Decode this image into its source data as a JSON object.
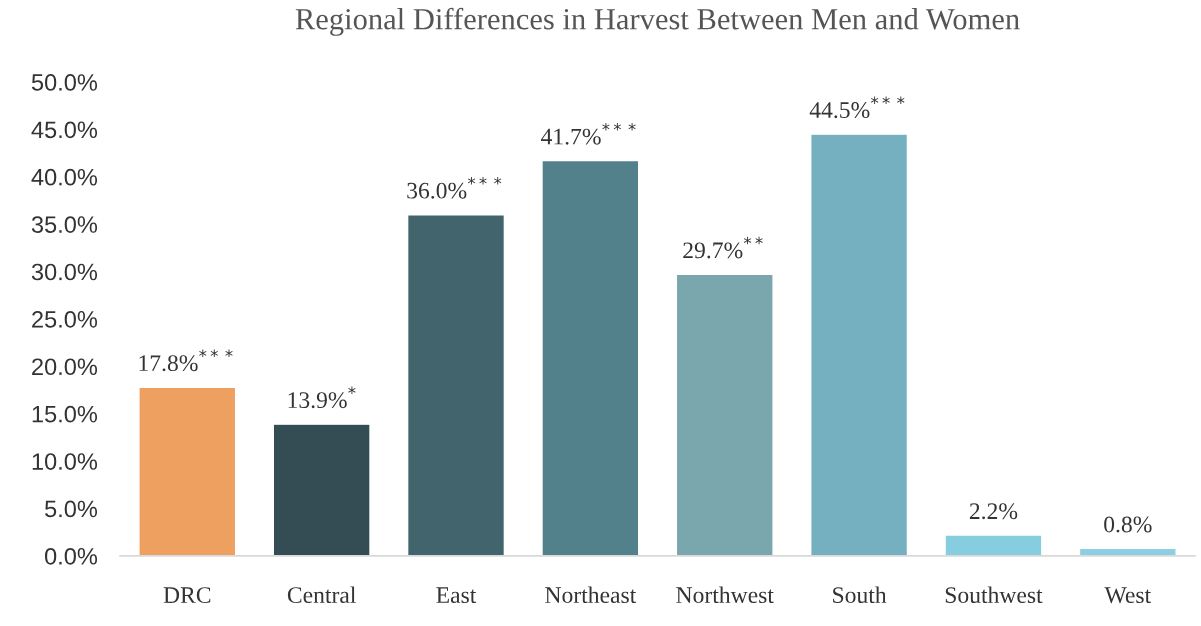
{
  "chart_data": {
    "type": "bar",
    "title": "Regional Differences in Harvest Between Men and Women",
    "categories": [
      "DRC",
      "Central",
      "East",
      "Northeast",
      "Northwest",
      "South",
      "Southwest",
      "West"
    ],
    "values": [
      17.8,
      13.9,
      36.0,
      41.7,
      29.7,
      44.5,
      2.2,
      0.8
    ],
    "colors": [
      "#eda060",
      "#344c53",
      "#42646d",
      "#52808b",
      "#7aa6ae",
      "#74b0c0",
      "#86cde0",
      "#8ccfe2"
    ],
    "value_labels": [
      "17.8%$^{***}$",
      "13.9%$^{*}$",
      "36.0%$^{***}$",
      "41.7%$^{***}$",
      "29.7%$^{**}$",
      "44.5%$^{***}$",
      "2.2%",
      "0.8%"
    ],
    "ylim": [
      0,
      50
    ],
    "yticks": [
      {
        "value": 0,
        "label": "0.0%"
      },
      {
        "value": 5,
        "label": "5.0%"
      },
      {
        "value": 10,
        "label": "10.0%"
      },
      {
        "value": 15,
        "label": "15.0%"
      },
      {
        "value": 20,
        "label": "20.0%"
      },
      {
        "value": 25,
        "label": "25.0%"
      },
      {
        "value": 30,
        "label": "30.0%"
      },
      {
        "value": 35,
        "label": "35.0%"
      },
      {
        "value": 40,
        "label": "40.0%"
      },
      {
        "value": 45,
        "label": "45.0%"
      },
      {
        "value": 50,
        "label": "50.0%"
      }
    ],
    "grid": false
  }
}
